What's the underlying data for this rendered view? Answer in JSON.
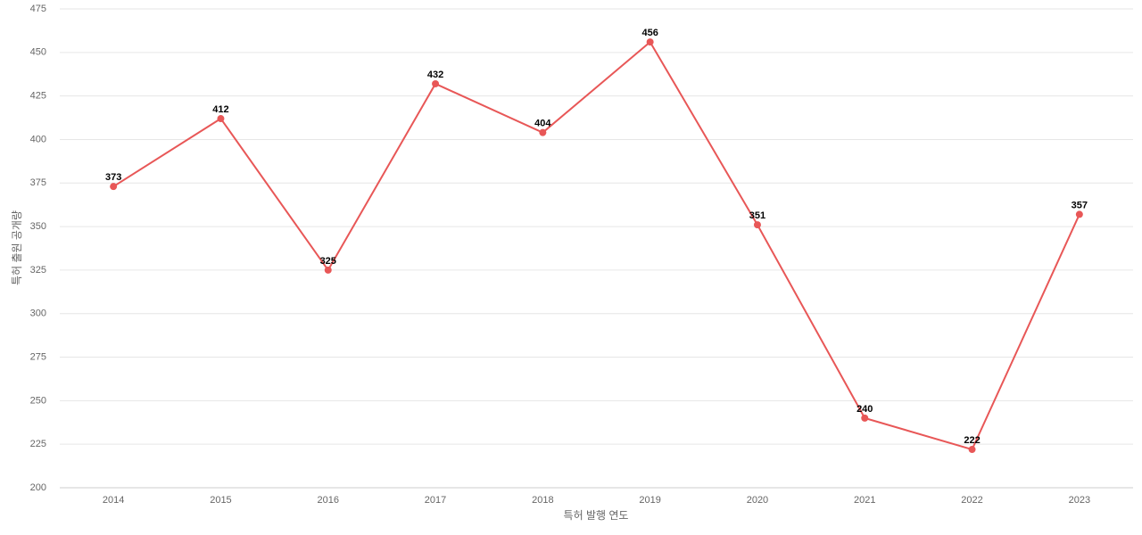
{
  "chart_data": {
    "type": "line",
    "x_label": "특허 발행 연도",
    "y_label": "특허 출원 공개량",
    "categories": [
      "2014",
      "2015",
      "2016",
      "2017",
      "2018",
      "2019",
      "2020",
      "2021",
      "2022",
      "2023"
    ],
    "series": [
      {
        "name": "특허 출원 공개량",
        "color": "#e85757",
        "values": [
          373,
          412,
          325,
          432,
          404,
          456,
          351,
          240,
          222,
          357
        ]
      }
    ],
    "ylim": [
      200,
      475
    ],
    "yticks": [
      200,
      225,
      250,
      275,
      300,
      325,
      350,
      375,
      400,
      425,
      450,
      475
    ],
    "grid": true,
    "data_labels": true
  }
}
